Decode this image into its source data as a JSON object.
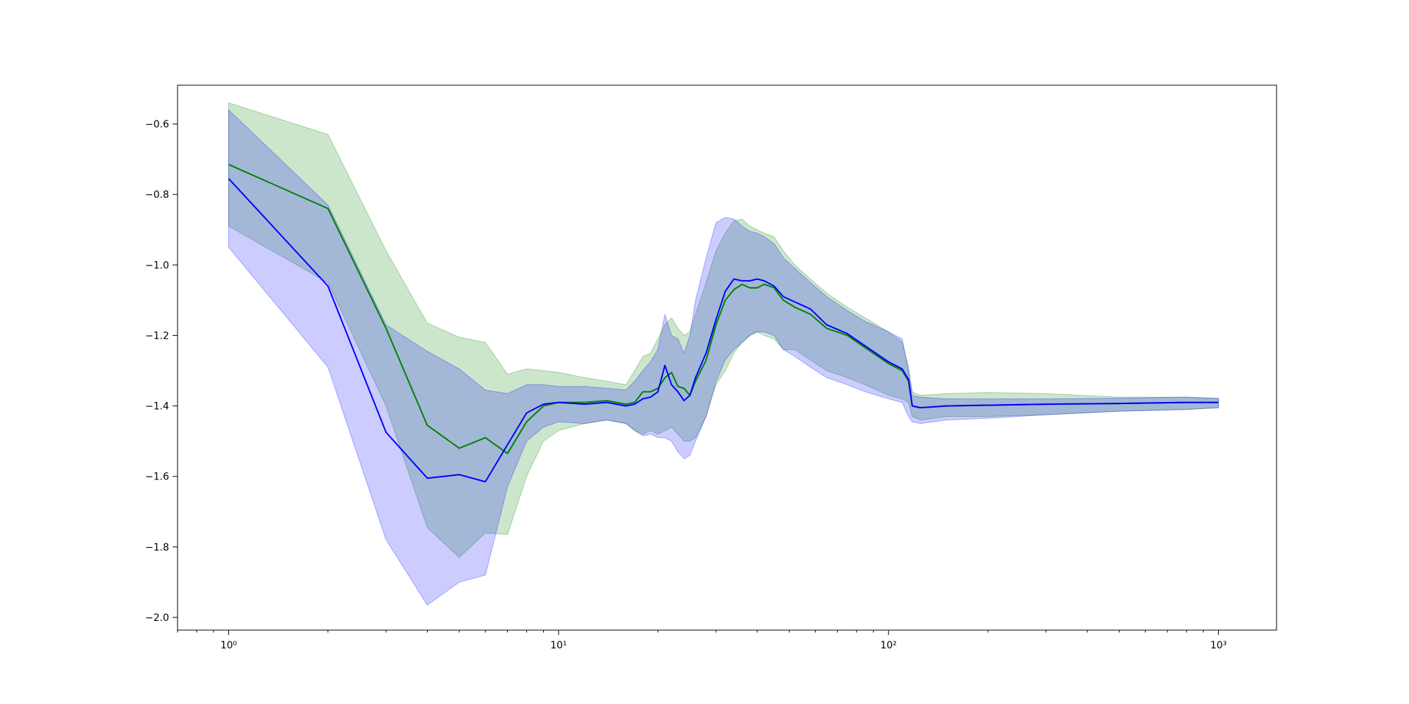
{
  "chart_data": {
    "type": "line",
    "title": "",
    "xlabel": "",
    "ylabel": "",
    "xscale": "log",
    "xlim": [
      0.7,
      1500
    ],
    "ylim": [
      -2.036,
      -0.49
    ],
    "grid": false,
    "x_ticks": [
      {
        "value": 1,
        "label": "10⁰"
      },
      {
        "value": 10,
        "label": "10¹"
      },
      {
        "value": 100,
        "label": "10²"
      },
      {
        "value": 1000,
        "label": "10³"
      }
    ],
    "y_ticks": [
      {
        "value": -0.6,
        "label": "−0.6"
      },
      {
        "value": -0.8,
        "label": "−0.8"
      },
      {
        "value": -1.0,
        "label": "−1.0"
      },
      {
        "value": -1.2,
        "label": "−1.2"
      },
      {
        "value": -1.4,
        "label": "−1.4"
      },
      {
        "value": -1.6,
        "label": "−1.6"
      },
      {
        "value": -1.8,
        "label": "−1.8"
      },
      {
        "value": -2.0,
        "label": "−2.0"
      }
    ],
    "series": [
      {
        "color": "#008000",
        "band_color": "#008000",
        "band_opacity": 0.2,
        "x": [
          1,
          2,
          3,
          4,
          5,
          6,
          7,
          8,
          9,
          10,
          12,
          14,
          16,
          17,
          18,
          19,
          20,
          21,
          22,
          23,
          24,
          25,
          26,
          28,
          30,
          32,
          34,
          36,
          38,
          40,
          42,
          45,
          48,
          52,
          58,
          65,
          75,
          85,
          100,
          110,
          115,
          118,
          125,
          150,
          200,
          300,
          500,
          800,
          1000
        ],
        "mean": [
          -0.715,
          -0.84,
          -1.18,
          -1.455,
          -1.52,
          -1.49,
          -1.535,
          -1.445,
          -1.4,
          -1.39,
          -1.39,
          -1.385,
          -1.395,
          -1.39,
          -1.36,
          -1.36,
          -1.35,
          -1.32,
          -1.305,
          -1.345,
          -1.35,
          -1.37,
          -1.33,
          -1.27,
          -1.17,
          -1.1,
          -1.07,
          -1.055,
          -1.065,
          -1.065,
          -1.055,
          -1.065,
          -1.1,
          -1.12,
          -1.14,
          -1.18,
          -1.2,
          -1.235,
          -1.28,
          -1.3,
          -1.33,
          -1.4,
          -1.405,
          -1.4,
          -1.398,
          -1.395,
          -1.393,
          -1.39,
          -1.39
        ],
        "upper": [
          -0.54,
          -0.63,
          -0.96,
          -1.165,
          -1.205,
          -1.22,
          -1.31,
          -1.295,
          -1.3,
          -1.305,
          -1.32,
          -1.33,
          -1.34,
          -1.3,
          -1.26,
          -1.25,
          -1.21,
          -1.17,
          -1.15,
          -1.18,
          -1.2,
          -1.19,
          -1.14,
          -1.05,
          -0.96,
          -0.91,
          -0.875,
          -0.87,
          -0.89,
          -0.9,
          -0.91,
          -0.92,
          -0.96,
          -1.0,
          -1.04,
          -1.08,
          -1.12,
          -1.15,
          -1.19,
          -1.22,
          -1.29,
          -1.36,
          -1.37,
          -1.365,
          -1.362,
          -1.365,
          -1.375,
          -1.375,
          -1.38
        ],
        "lower": [
          -0.89,
          -1.05,
          -1.4,
          -1.745,
          -1.83,
          -1.76,
          -1.765,
          -1.6,
          -1.5,
          -1.47,
          -1.45,
          -1.44,
          -1.45,
          -1.47,
          -1.48,
          -1.47,
          -1.48,
          -1.47,
          -1.46,
          -1.48,
          -1.5,
          -1.5,
          -1.49,
          -1.43,
          -1.34,
          -1.3,
          -1.25,
          -1.22,
          -1.2,
          -1.19,
          -1.2,
          -1.21,
          -1.24,
          -1.24,
          -1.27,
          -1.3,
          -1.32,
          -1.34,
          -1.37,
          -1.38,
          -1.39,
          -1.43,
          -1.44,
          -1.43,
          -1.43,
          -1.425,
          -1.415,
          -1.41,
          -1.405
        ]
      },
      {
        "color": "#0000ff",
        "band_color": "#0000ff",
        "band_opacity": 0.2,
        "x": [
          1,
          2,
          3,
          4,
          5,
          6,
          7,
          8,
          9,
          10,
          12,
          14,
          16,
          17,
          18,
          19,
          20,
          21,
          22,
          23,
          24,
          25,
          26,
          28,
          30,
          32,
          34,
          36,
          38,
          40,
          42,
          45,
          48,
          52,
          58,
          65,
          75,
          85,
          100,
          110,
          115,
          118,
          125,
          150,
          200,
          300,
          500,
          800,
          1000
        ],
        "mean": [
          -0.755,
          -1.06,
          -1.475,
          -1.605,
          -1.595,
          -1.615,
          -1.51,
          -1.42,
          -1.395,
          -1.39,
          -1.395,
          -1.39,
          -1.4,
          -1.395,
          -1.38,
          -1.375,
          -1.36,
          -1.285,
          -1.34,
          -1.36,
          -1.385,
          -1.37,
          -1.32,
          -1.25,
          -1.155,
          -1.075,
          -1.04,
          -1.045,
          -1.045,
          -1.04,
          -1.045,
          -1.06,
          -1.09,
          -1.105,
          -1.125,
          -1.17,
          -1.195,
          -1.23,
          -1.275,
          -1.295,
          -1.325,
          -1.4,
          -1.405,
          -1.4,
          -1.398,
          -1.395,
          -1.393,
          -1.39,
          -1.39
        ],
        "upper": [
          -0.56,
          -0.83,
          -1.17,
          -1.245,
          -1.295,
          -1.355,
          -1.365,
          -1.34,
          -1.34,
          -1.345,
          -1.345,
          -1.35,
          -1.355,
          -1.33,
          -1.3,
          -1.275,
          -1.24,
          -1.14,
          -1.2,
          -1.21,
          -1.25,
          -1.2,
          -1.1,
          -0.98,
          -0.88,
          -0.865,
          -0.87,
          -0.89,
          -0.905,
          -0.91,
          -0.92,
          -0.94,
          -0.98,
          -1.01,
          -1.05,
          -1.09,
          -1.13,
          -1.16,
          -1.19,
          -1.21,
          -1.3,
          -1.37,
          -1.375,
          -1.38,
          -1.38,
          -1.38,
          -1.378,
          -1.375,
          -1.378
        ],
        "lower": [
          -0.95,
          -1.29,
          -1.78,
          -1.965,
          -1.9,
          -1.88,
          -1.63,
          -1.5,
          -1.46,
          -1.445,
          -1.45,
          -1.44,
          -1.45,
          -1.47,
          -1.485,
          -1.48,
          -1.49,
          -1.49,
          -1.5,
          -1.53,
          -1.55,
          -1.54,
          -1.5,
          -1.43,
          -1.33,
          -1.27,
          -1.24,
          -1.22,
          -1.2,
          -1.19,
          -1.19,
          -1.2,
          -1.24,
          -1.26,
          -1.29,
          -1.32,
          -1.34,
          -1.36,
          -1.38,
          -1.39,
          -1.43,
          -1.445,
          -1.45,
          -1.44,
          -1.435,
          -1.425,
          -1.415,
          -1.41,
          -1.405
        ]
      }
    ]
  }
}
